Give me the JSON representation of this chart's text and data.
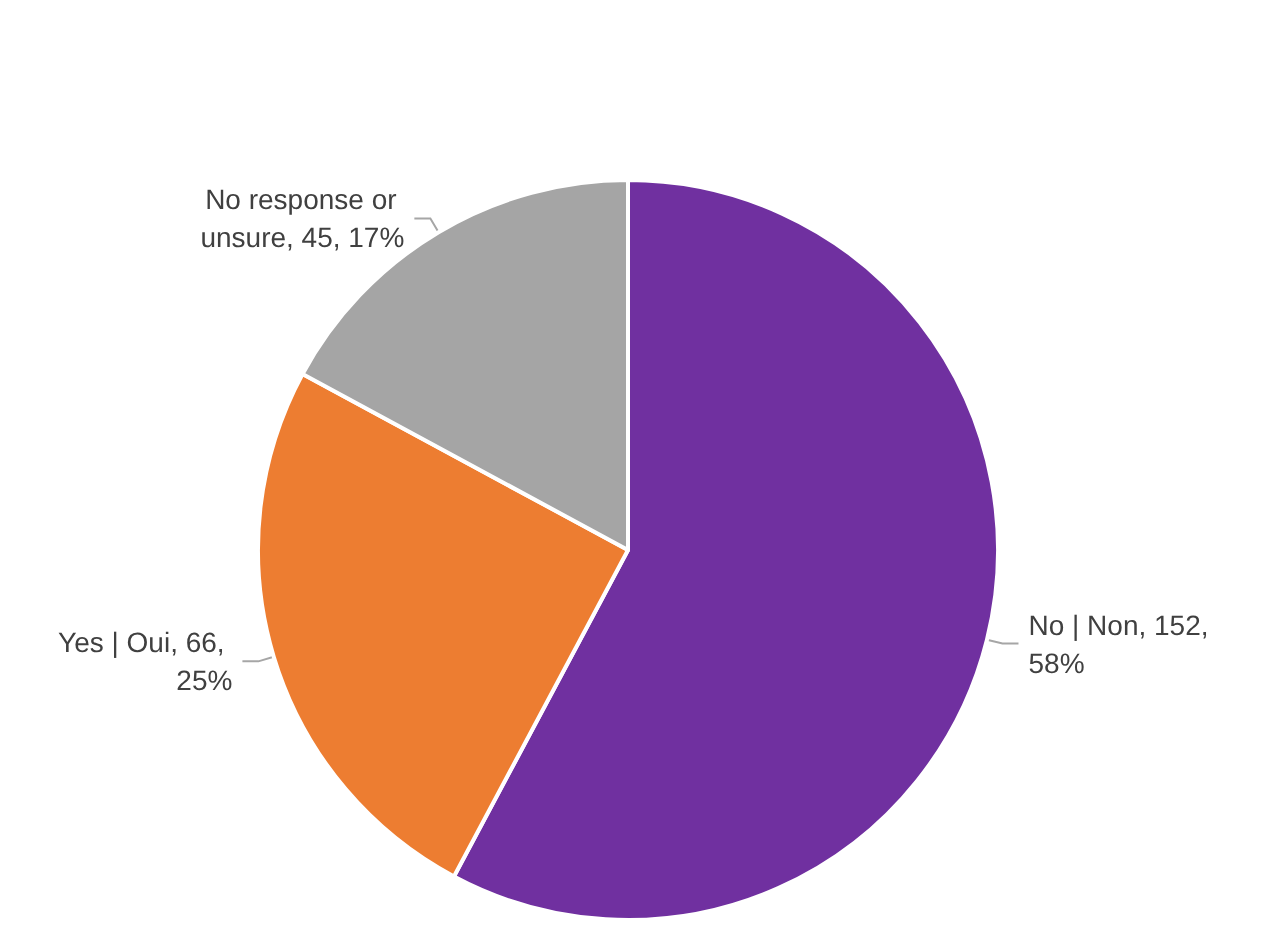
{
  "chart_data": {
    "type": "pie",
    "categories": [
      "No | Non",
      "Yes | Oui",
      "No response or unsure"
    ],
    "values": [
      152,
      66,
      45
    ],
    "colors": [
      "#7030a0",
      "#ed7d31",
      "#a5a5a5"
    ],
    "value_labels": [
      "152, 58%",
      "66, 25%",
      "45, 17%"
    ],
    "legend": false
  }
}
